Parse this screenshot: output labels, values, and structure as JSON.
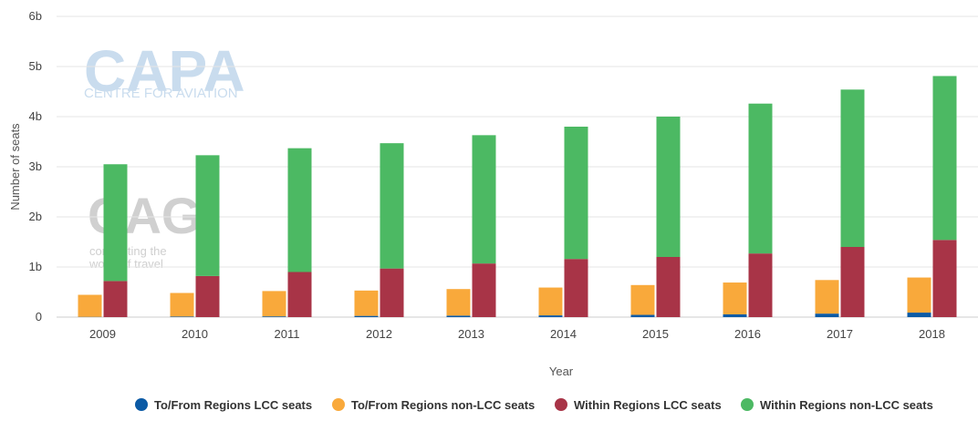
{
  "chart_data": {
    "type": "bar",
    "title": "",
    "xlabel": "Year",
    "ylabel": "Number of seats",
    "ylim": [
      0,
      6000000000
    ],
    "yticks": [
      {
        "value": 0,
        "label": "0"
      },
      {
        "value": 1000000000,
        "label": "1b"
      },
      {
        "value": 2000000000,
        "label": "2b"
      },
      {
        "value": 3000000000,
        "label": "3b"
      },
      {
        "value": 4000000000,
        "label": "4b"
      },
      {
        "value": 5000000000,
        "label": "5b"
      },
      {
        "value": 6000000000,
        "label": "6b"
      }
    ],
    "categories": [
      "2009",
      "2010",
      "2011",
      "2012",
      "2013",
      "2014",
      "2015",
      "2016",
      "2017",
      "2018"
    ],
    "stacks": [
      {
        "stack": "To/From Regions",
        "series": [
          "To/From Regions LCC seats",
          "To/From Regions non-LCC seats"
        ]
      },
      {
        "stack": "Within Regions",
        "series": [
          "Within Regions LCC seats",
          "Within Regions non-LCC seats"
        ]
      }
    ],
    "series": [
      {
        "name": "To/From Regions LCC seats",
        "stack": "To/From Regions",
        "color": "#0b5aa5",
        "values": [
          5000000,
          12000000,
          15000000,
          25000000,
          30000000,
          35000000,
          45000000,
          55000000,
          70000000,
          90000000
        ]
      },
      {
        "name": "To/From Regions non-LCC seats",
        "stack": "To/From Regions",
        "color": "#f9a93b",
        "values": [
          440000000,
          470000000,
          505000000,
          505000000,
          530000000,
          555000000,
          595000000,
          635000000,
          670000000,
          700000000
        ]
      },
      {
        "name": "Within Regions LCC seats",
        "stack": "Within Regions",
        "color": "#a83447",
        "values": [
          720000000,
          820000000,
          900000000,
          970000000,
          1070000000,
          1160000000,
          1200000000,
          1270000000,
          1400000000,
          1540000000
        ]
      },
      {
        "name": "Within Regions non-LCC seats",
        "stack": "Within Regions",
        "color": "#4cb963",
        "values": [
          2330000000,
          2410000000,
          2470000000,
          2500000000,
          2560000000,
          2640000000,
          2800000000,
          2990000000,
          3140000000,
          3270000000
        ]
      }
    ],
    "grid": true,
    "legend": "bottom-center"
  },
  "watermarks": {
    "capa_logo": "CAPA",
    "capa_subtitle": "CENTRE FOR AVIATION",
    "cag_logo": "CAG",
    "cag_line1": "connecting the",
    "cag_line2": "world of travel"
  },
  "colors": {
    "grid": "#e6e6e6",
    "axis": "#cccccc"
  }
}
